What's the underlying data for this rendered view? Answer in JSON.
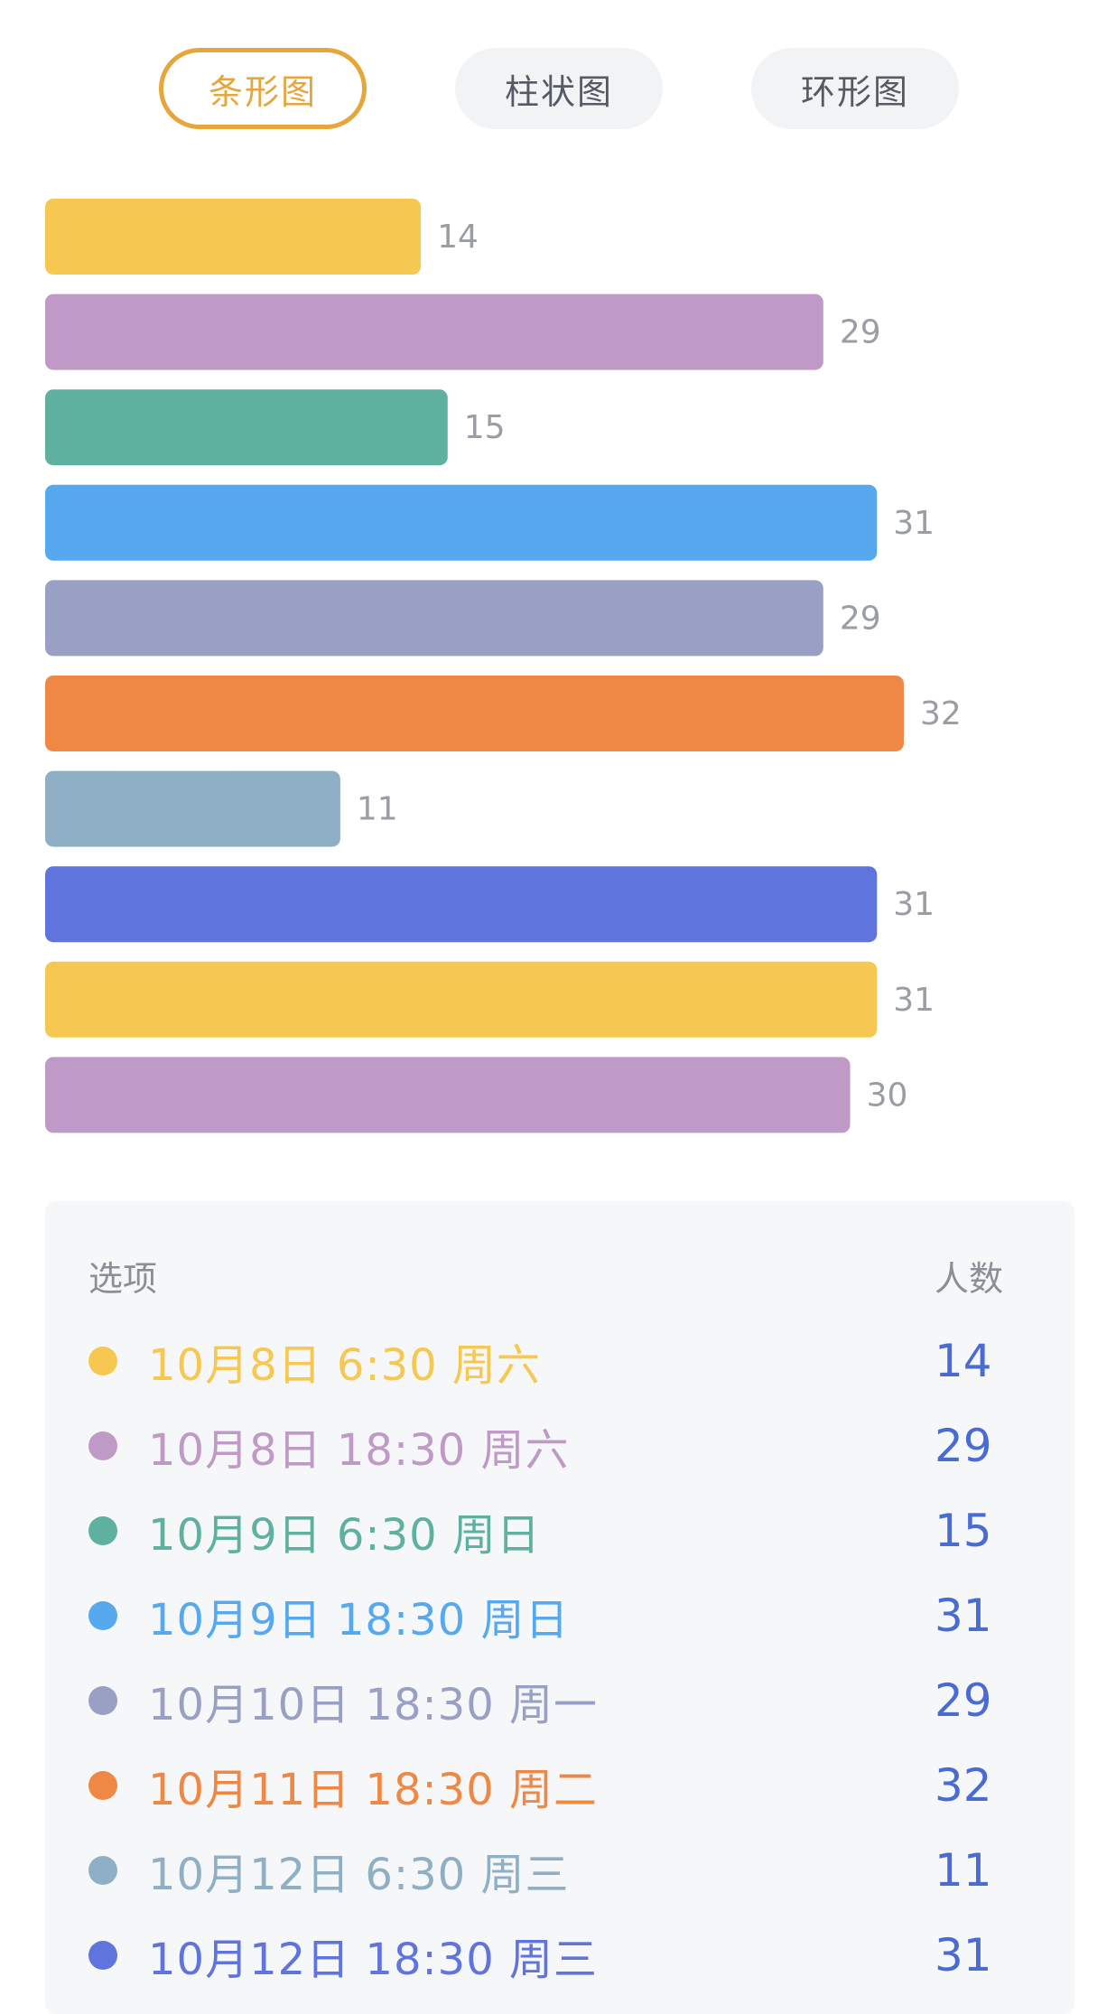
{
  "tabs": [
    {
      "label": "条形图",
      "active": true
    },
    {
      "label": "柱状图",
      "active": false
    },
    {
      "label": "环形图",
      "active": false
    }
  ],
  "colors": {
    "active_tab": "#e5a63c",
    "count_text": "#4a6bd1",
    "value_label": "#9a9da3"
  },
  "chart_data": {
    "type": "bar",
    "orientation": "horizontal",
    "categories": [
      "10月8日 6:30 周六",
      "10月8日 18:30 周六",
      "10月9日 6:30 周日",
      "10月9日 18:30 周日",
      "10月10日 18:30 周一",
      "10月11日 18:30 周二",
      "10月12日 6:30 周三",
      "10月12日 18:30 周三",
      "",
      ""
    ],
    "values": [
      14,
      29,
      15,
      31,
      29,
      32,
      11,
      31,
      31,
      30
    ],
    "colors": [
      "#f6c851",
      "#bf9ac6",
      "#5fb19f",
      "#57a9ef",
      "#9a9fc4",
      "#ef8845",
      "#8fb0c4",
      "#5f74dc",
      "#f6c851",
      "#bf9ac6"
    ],
    "xlim": [
      0,
      32
    ],
    "grid": false,
    "title": "",
    "xlabel": "",
    "ylabel": ""
  },
  "table": {
    "header_option": "选项",
    "header_count": "人数",
    "rows": [
      {
        "label": "10月8日 6:30 周六",
        "count": "14",
        "color": "#f6c851"
      },
      {
        "label": "10月8日 18:30 周六",
        "count": "29",
        "color": "#bf9ac6"
      },
      {
        "label": "10月9日 6:30 周日",
        "count": "15",
        "color": "#5fb19f"
      },
      {
        "label": "10月9日 18:30 周日",
        "count": "31",
        "color": "#57a9ef"
      },
      {
        "label": "10月10日 18:30 周一",
        "count": "29",
        "color": "#9a9fc4"
      },
      {
        "label": "10月11日 18:30 周二",
        "count": "32",
        "color": "#ef8845"
      },
      {
        "label": "10月12日 6:30 周三",
        "count": "11",
        "color": "#8fb0c4"
      },
      {
        "label": "10月12日 18:30 周三",
        "count": "31",
        "color": "#5f74dc"
      }
    ]
  }
}
